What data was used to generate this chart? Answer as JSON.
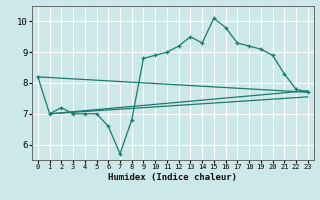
{
  "title": "",
  "xlabel": "Humidex (Indice chaleur)",
  "ylabel": "",
  "bg_color": "#cce8e8",
  "grid_color": "#ffffff",
  "line_color": "#1a7a6e",
  "xlim": [
    -0.5,
    23.5
  ],
  "ylim": [
    5.5,
    10.5
  ],
  "xticks": [
    0,
    1,
    2,
    3,
    4,
    5,
    6,
    7,
    8,
    9,
    10,
    11,
    12,
    13,
    14,
    15,
    16,
    17,
    18,
    19,
    20,
    21,
    22,
    23
  ],
  "yticks": [
    6,
    7,
    8,
    9,
    10
  ],
  "line1": {
    "x": [
      0,
      1,
      2,
      3,
      4,
      5,
      6,
      7,
      8,
      9,
      10,
      11,
      12,
      13,
      14,
      15,
      16,
      17,
      18,
      19,
      20,
      21,
      22,
      23
    ],
    "y": [
      8.2,
      7.0,
      7.2,
      7.0,
      7.0,
      7.0,
      6.6,
      5.7,
      6.8,
      8.8,
      8.9,
      9.0,
      9.2,
      9.5,
      9.3,
      10.1,
      9.8,
      9.3,
      9.2,
      9.1,
      8.9,
      8.3,
      7.8,
      7.7
    ]
  },
  "line2": {
    "x": [
      0,
      23
    ],
    "y": [
      8.2,
      7.7
    ]
  },
  "line3": {
    "x": [
      1,
      23
    ],
    "y": [
      7.0,
      7.55
    ]
  },
  "line4": {
    "x": [
      1,
      23
    ],
    "y": [
      7.0,
      7.75
    ]
  }
}
